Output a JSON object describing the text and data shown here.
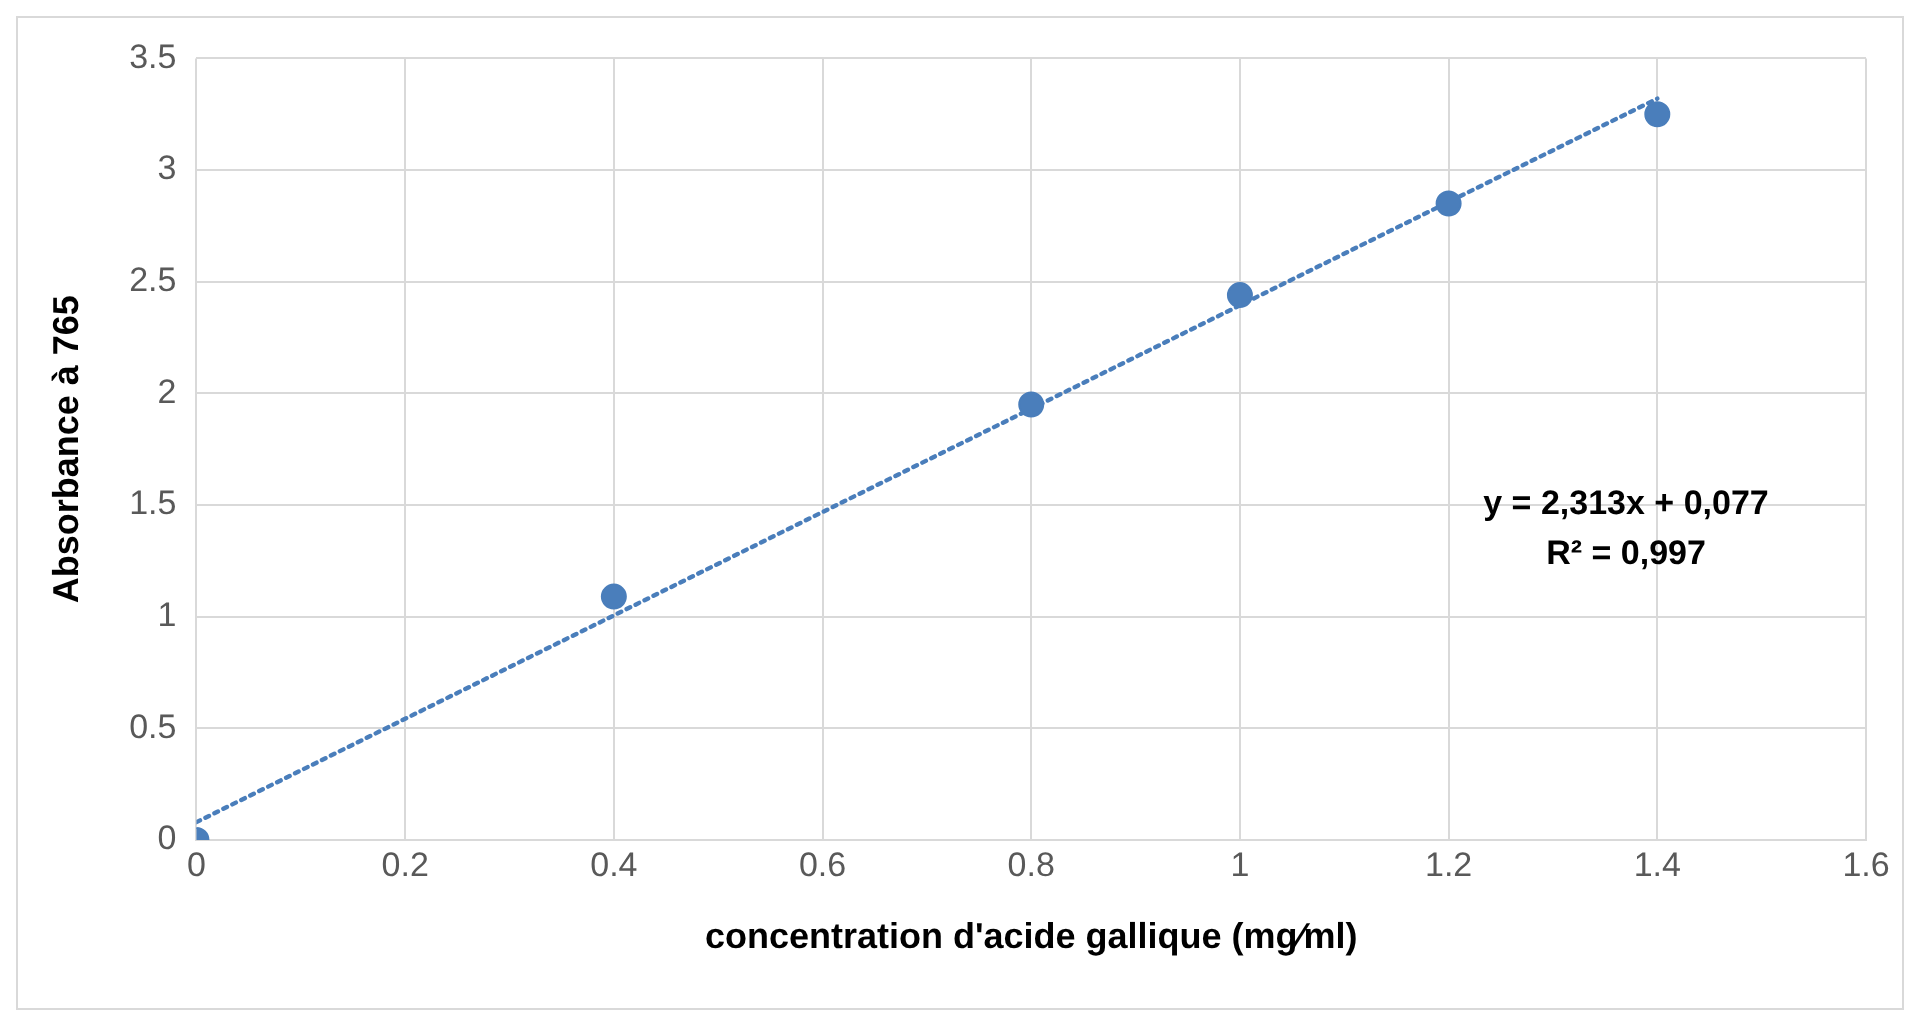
{
  "chart_data": {
    "type": "scatter",
    "xlabel": "concentration d'acide gallique (mg⁄ml)",
    "ylabel": "Absorbance à 765",
    "x": [
      0,
      0.4,
      0.8,
      1,
      1.2,
      1.4
    ],
    "series": [
      {
        "color": "#4a7ebb",
        "values": [
          0,
          1.09,
          1.95,
          2.44,
          2.85,
          3.25
        ],
        "marker": "circle"
      },
      {
        "type": "line",
        "color": "#4a7ebb",
        "x": [
          0,
          1.4
        ],
        "values": [
          0.08,
          3.32
        ],
        "marker": "none",
        "line_style": "dotted"
      }
    ],
    "xlim": [
      0,
      1.6
    ],
    "xticks": [
      0,
      0.2,
      0.4,
      0.6,
      0.8,
      1,
      1.2,
      1.4,
      1.6
    ],
    "ylim": [
      0,
      3.5
    ],
    "yticks": [
      0,
      0.5,
      1,
      1.5,
      2,
      2.5,
      3,
      3.5
    ],
    "grid": true,
    "legend": false,
    "annotations": [
      "y = 2,313x + 0,077",
      "R² = 0,997"
    ]
  }
}
